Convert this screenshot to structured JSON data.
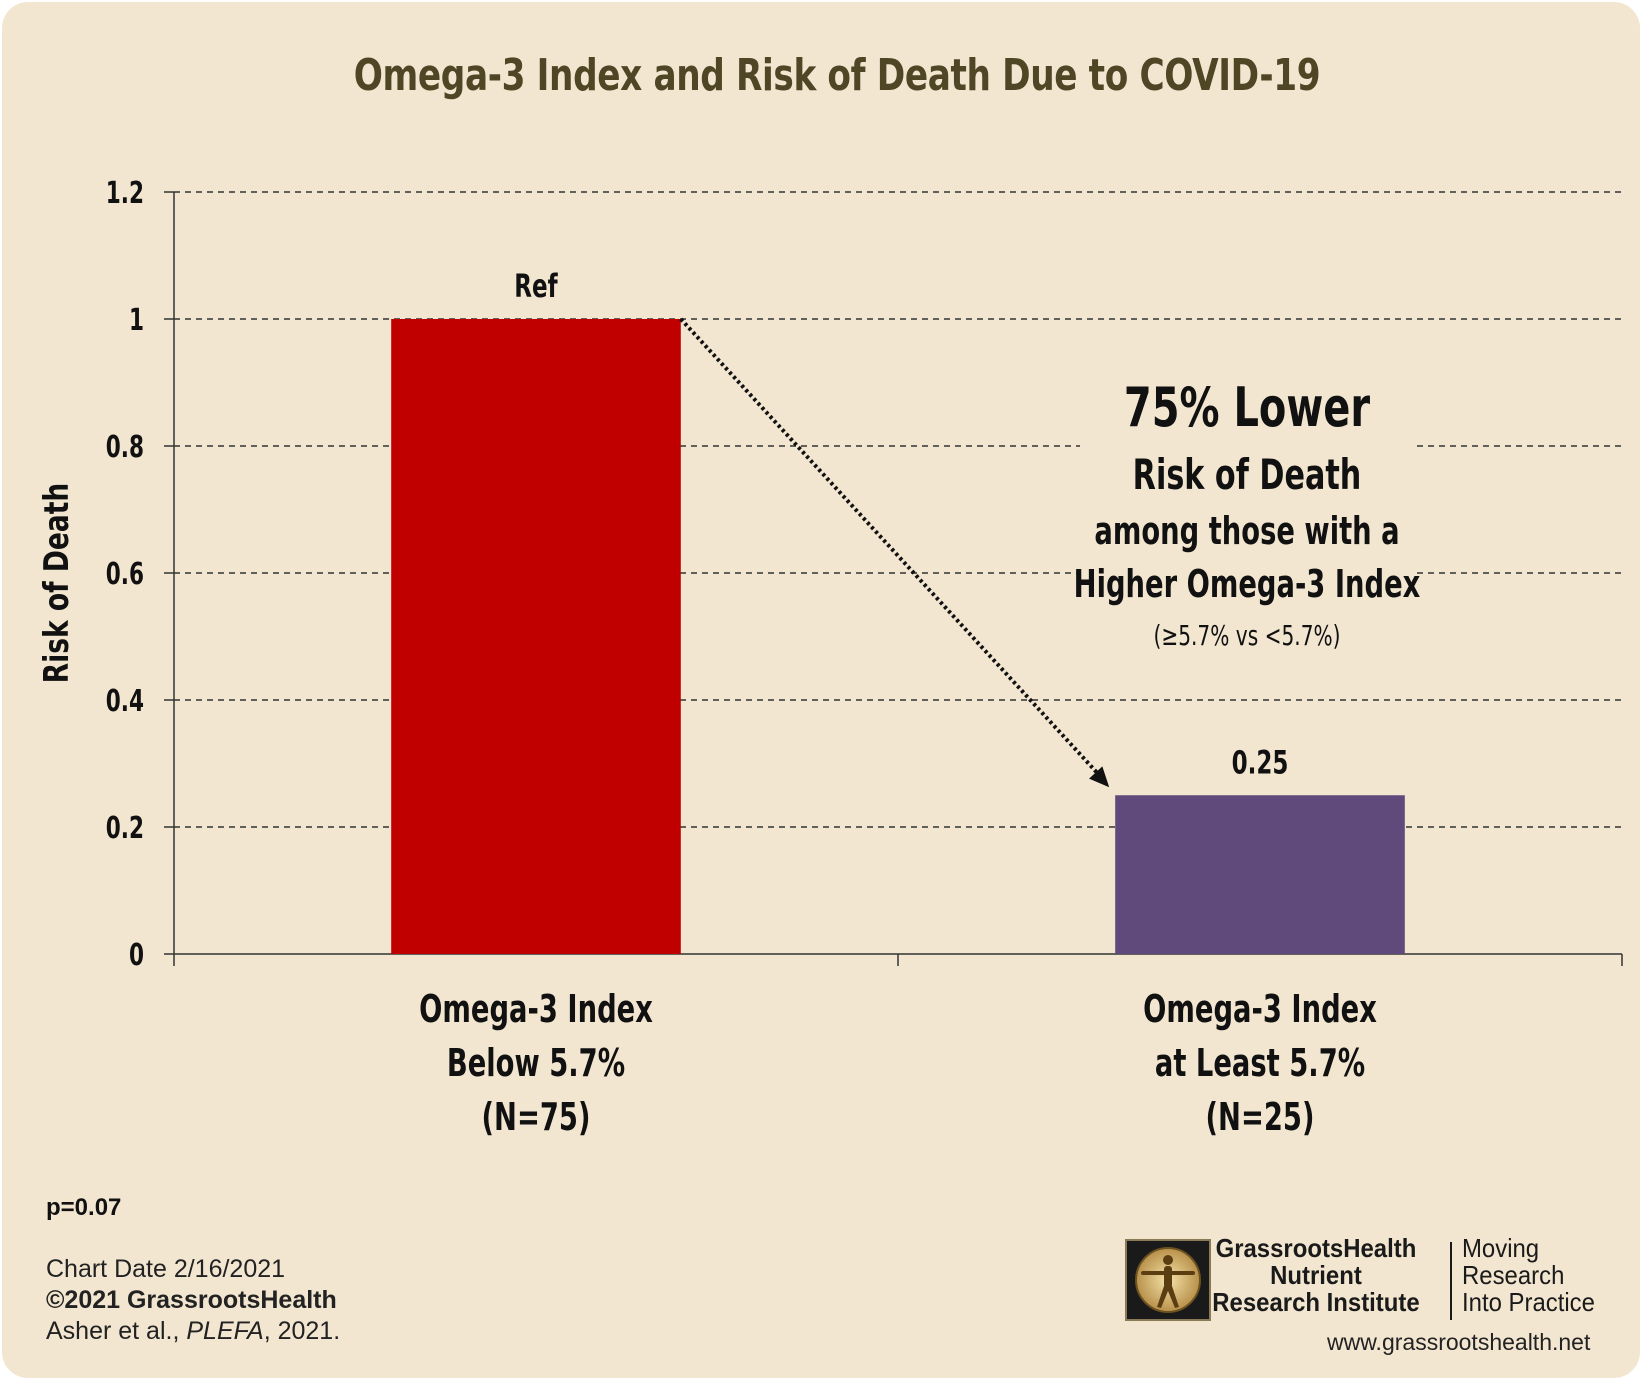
{
  "chart_data": {
    "type": "bar",
    "title": "Omega-3 Index and Risk of Death Due to COVID-19",
    "ylabel": "Risk of Death",
    "xlabel": "",
    "ylim": [
      0,
      1.2
    ],
    "yticks": [
      "0",
      "0.2",
      "0.4",
      "0.6",
      "0.8",
      "1",
      "1.2"
    ],
    "grid": true,
    "categories": [
      [
        "Omega-3 Index",
        "Below 5.7%",
        "(N=75)"
      ],
      [
        "Omega-3 Index",
        "at Least 5.7%",
        "(N=25)"
      ]
    ],
    "values": [
      1,
      0.25
    ],
    "data_labels": [
      "Ref",
      "0.25"
    ],
    "colors": [
      "#c00000",
      "#604a7b"
    ],
    "annotation": {
      "headline": "75% Lower",
      "line2": "Risk of Death",
      "line3": "among those with a",
      "line4": "Higher Omega-3 Index",
      "line5": "(≥5.7% vs <5.7%)"
    }
  },
  "footer": {
    "pvalue": "p=0.07",
    "chart_date": "Chart Date 2/16/2021",
    "copyright": "©2021 GrassrootsHealth",
    "citation_authors": "Asher et al., ",
    "citation_journal": "PLEFA",
    "citation_year": ", 2021."
  },
  "logo": {
    "org_line1": "GrassrootsHealth",
    "org_line2": "Nutrient",
    "org_line3": "Research Institute",
    "tag_line1": "Moving",
    "tag_line2": "Research",
    "tag_line3": "Into Practice",
    "url": "www.grassrootshealth.net"
  },
  "colors": {
    "background": "#f2e6d0",
    "title": "#4f4626"
  }
}
